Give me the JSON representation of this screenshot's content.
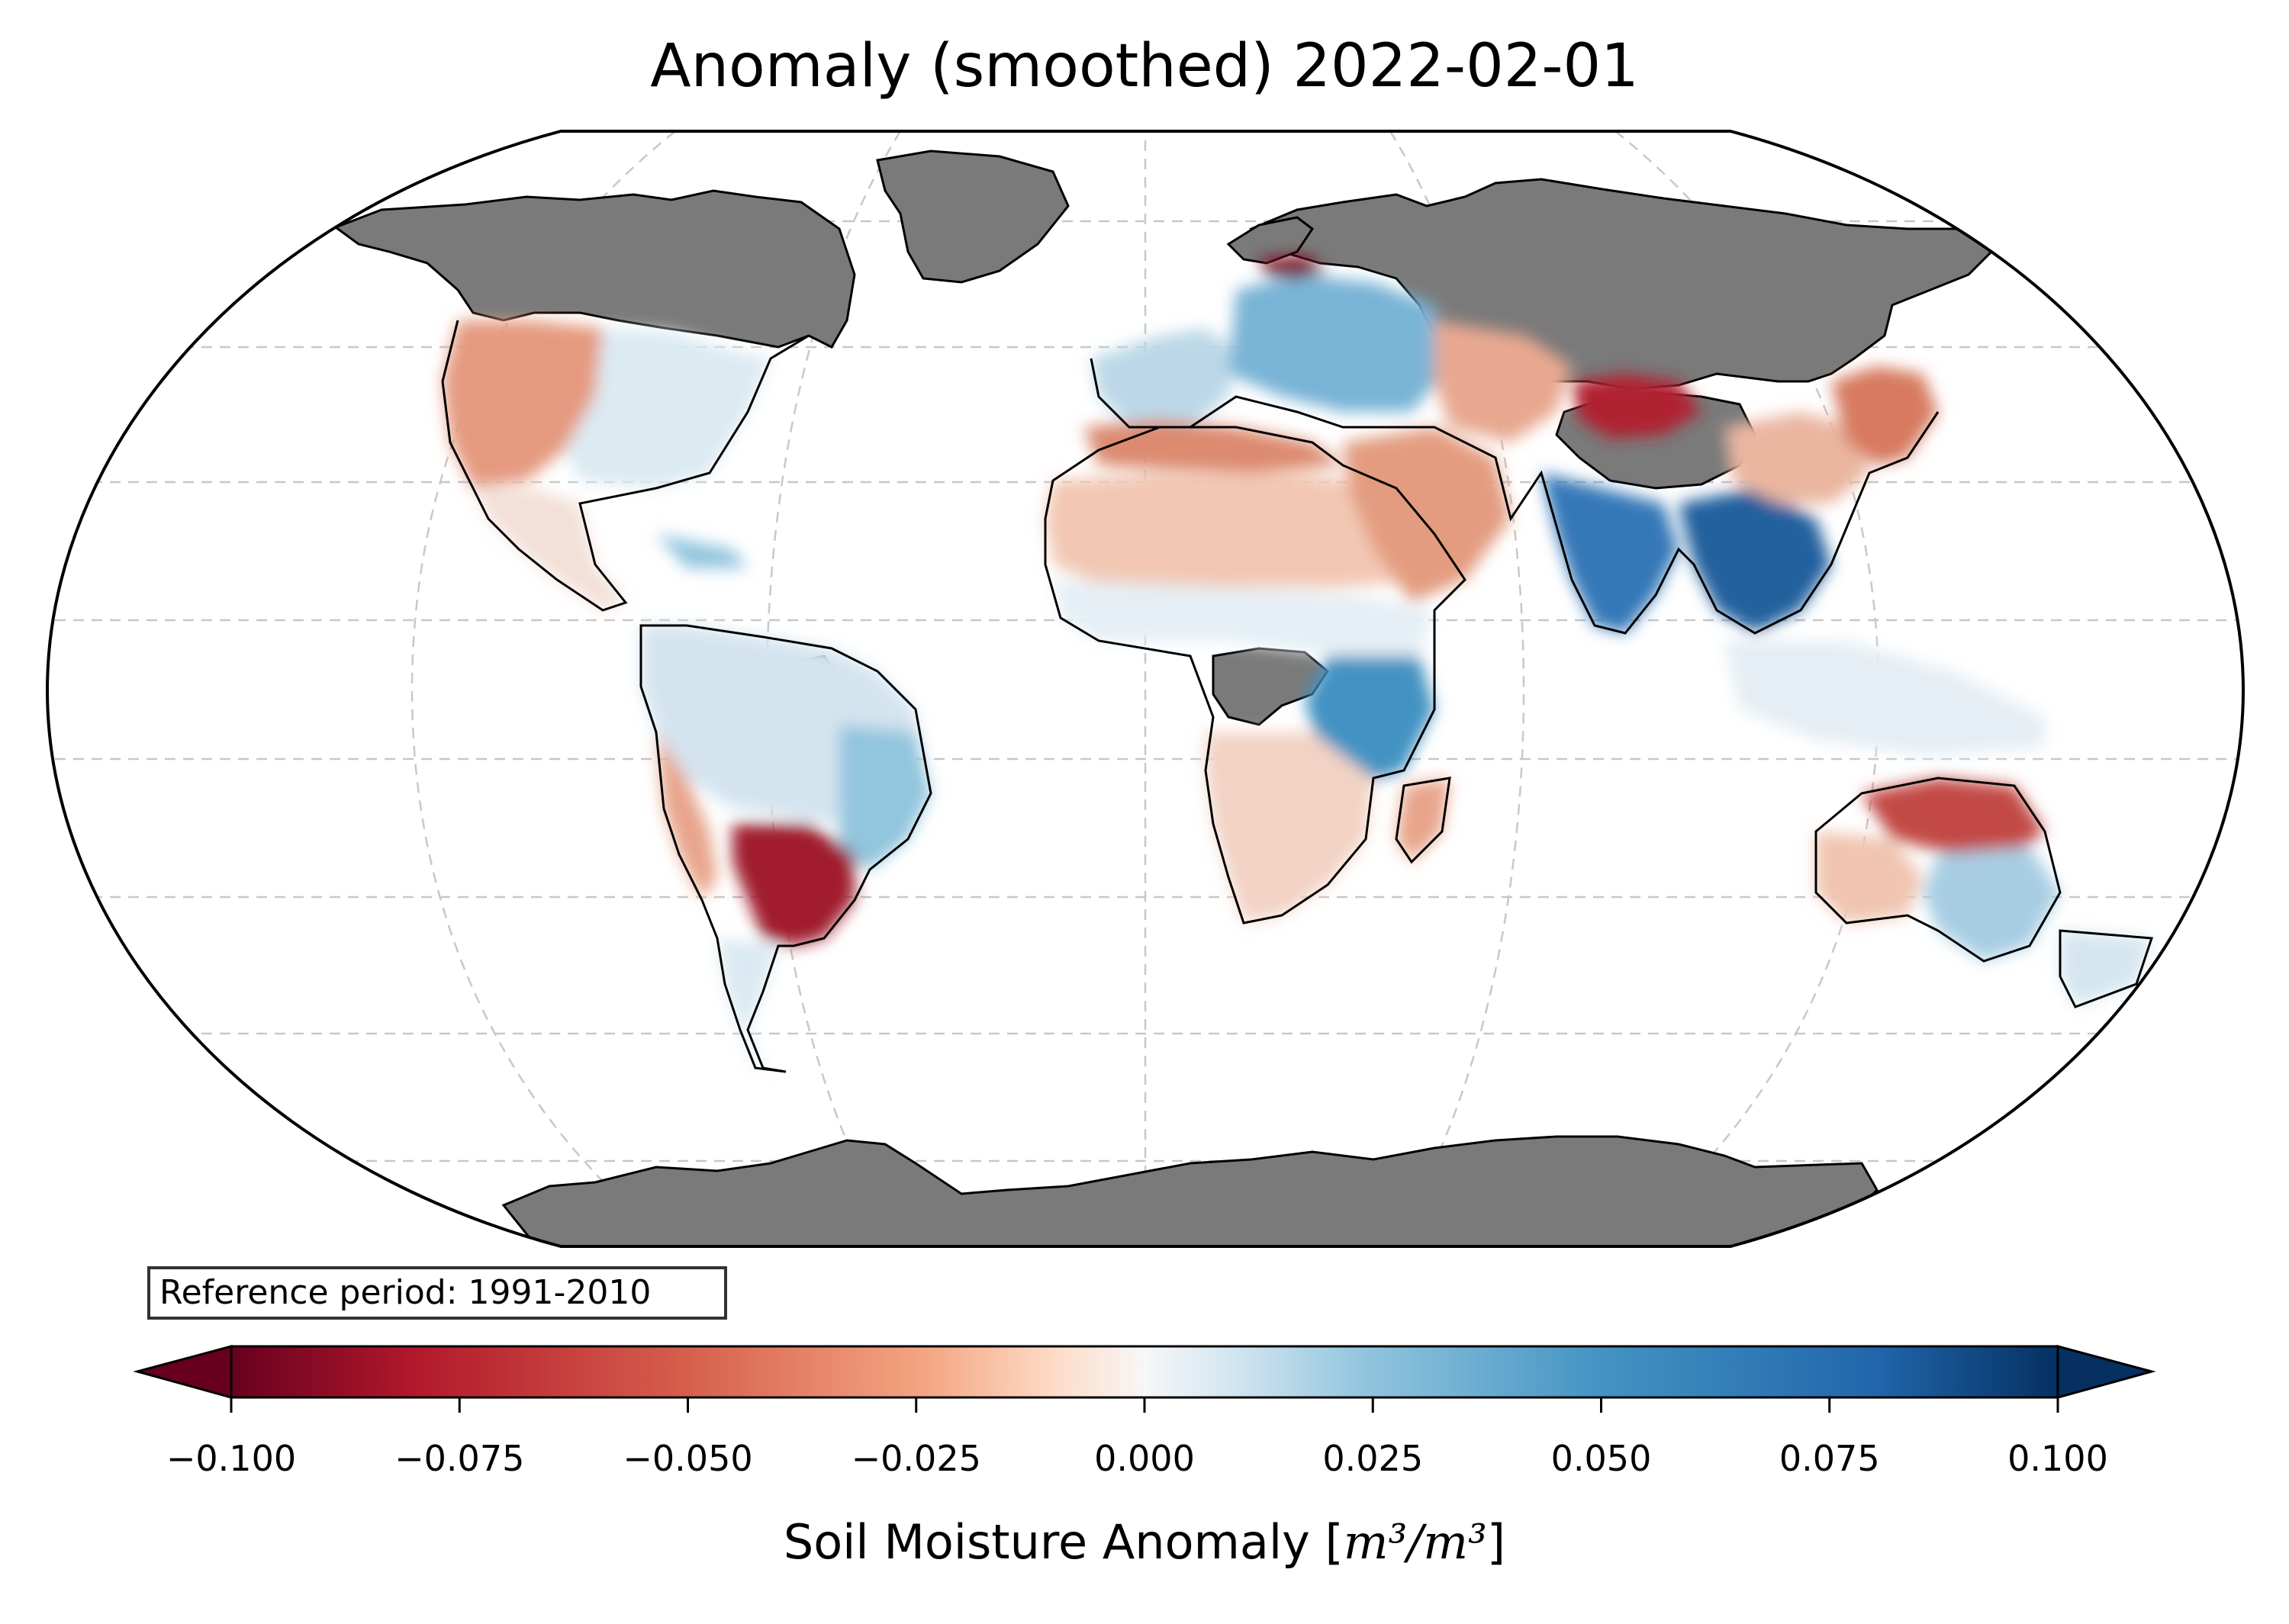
{
  "title": "Anomaly (smoothed) 2022-02-01",
  "reference_box": "Reference period: 1991-2010",
  "colorbar": {
    "label_text": "Soil Moisture Anomaly [",
    "label_unit": "m³/m³",
    "label_close": "]",
    "ticks": [
      "−0.100",
      "−0.075",
      "−0.050",
      "−0.025",
      "0.000",
      "0.025",
      "0.050",
      "0.075",
      "0.100"
    ],
    "tick_values": [
      -0.1,
      -0.075,
      -0.05,
      -0.025,
      0.0,
      0.025,
      0.05,
      0.075,
      0.1
    ],
    "range": [
      -0.1,
      0.1
    ],
    "extend": "both",
    "colormap": "RdBu",
    "colors": [
      "#67001f",
      "#b2182b",
      "#d6604d",
      "#f4a582",
      "#fddbc7",
      "#f7f7f7",
      "#d1e5f0",
      "#92c5de",
      "#4393c3",
      "#2166ac",
      "#053061"
    ]
  },
  "map": {
    "projection": "Robinson",
    "no_data_color": "#7a7a7a",
    "ocean_color": "#ffffff",
    "coastline_color": "#000000",
    "gridlines": "dashed light gray",
    "regions": [
      {
        "name": "Greenland & Arctic Canada",
        "value": null
      },
      {
        "name": "Alaska & Northern Canada",
        "value": null
      },
      {
        "name": "Northern Russia & Siberia",
        "value": null
      },
      {
        "name": "Antarctica",
        "value": null
      },
      {
        "name": "Tibetan Plateau",
        "value": null
      },
      {
        "name": "Amazon core",
        "value": null
      },
      {
        "name": "Congo core",
        "value": null
      },
      {
        "name": "Western USA",
        "value": -0.035
      },
      {
        "name": "Eastern USA",
        "value": 0.012
      },
      {
        "name": "Mexico",
        "value": -0.01
      },
      {
        "name": "Caribbean",
        "value": 0.03
      },
      {
        "name": "Northern South America",
        "value": 0.015
      },
      {
        "name": "Eastern Brazil",
        "value": 0.035
      },
      {
        "name": "Andes",
        "value": -0.03
      },
      {
        "name": "Paraguay & Northern Argentina",
        "value": -0.09
      },
      {
        "name": "Southern Argentina & Patagonia",
        "value": 0.015
      },
      {
        "name": "Western Europe",
        "value": 0.03
      },
      {
        "name": "Eastern Europe",
        "value": 0.045
      },
      {
        "name": "Baltic",
        "value": -0.095
      },
      {
        "name": "North Africa",
        "value": -0.045
      },
      {
        "name": "Sahara",
        "value": -0.025
      },
      {
        "name": "Sahel",
        "value": 0.01
      },
      {
        "name": "East Africa",
        "value": 0.06
      },
      {
        "name": "Southern Africa",
        "value": -0.02
      },
      {
        "name": "Madagascar",
        "value": -0.025
      },
      {
        "name": "Middle East",
        "value": -0.045
      },
      {
        "name": "Central Asia",
        "value": -0.04
      },
      {
        "name": "Mongolia & Northern China",
        "value": -0.085
      },
      {
        "name": "India",
        "value": 0.065
      },
      {
        "name": "Southeast Asia",
        "value": 0.075
      },
      {
        "name": "Southern China",
        "value": -0.03
      },
      {
        "name": "Korea & Japan",
        "value": -0.05
      },
      {
        "name": "Maritime Continent",
        "value": 0.01
      },
      {
        "name": "Northern Australia",
        "value": -0.07
      },
      {
        "name": "Western Australia",
        "value": -0.02
      },
      {
        "name": "Eastern Australia",
        "value": 0.035
      },
      {
        "name": "New Zealand",
        "value": 0.02
      }
    ]
  }
}
